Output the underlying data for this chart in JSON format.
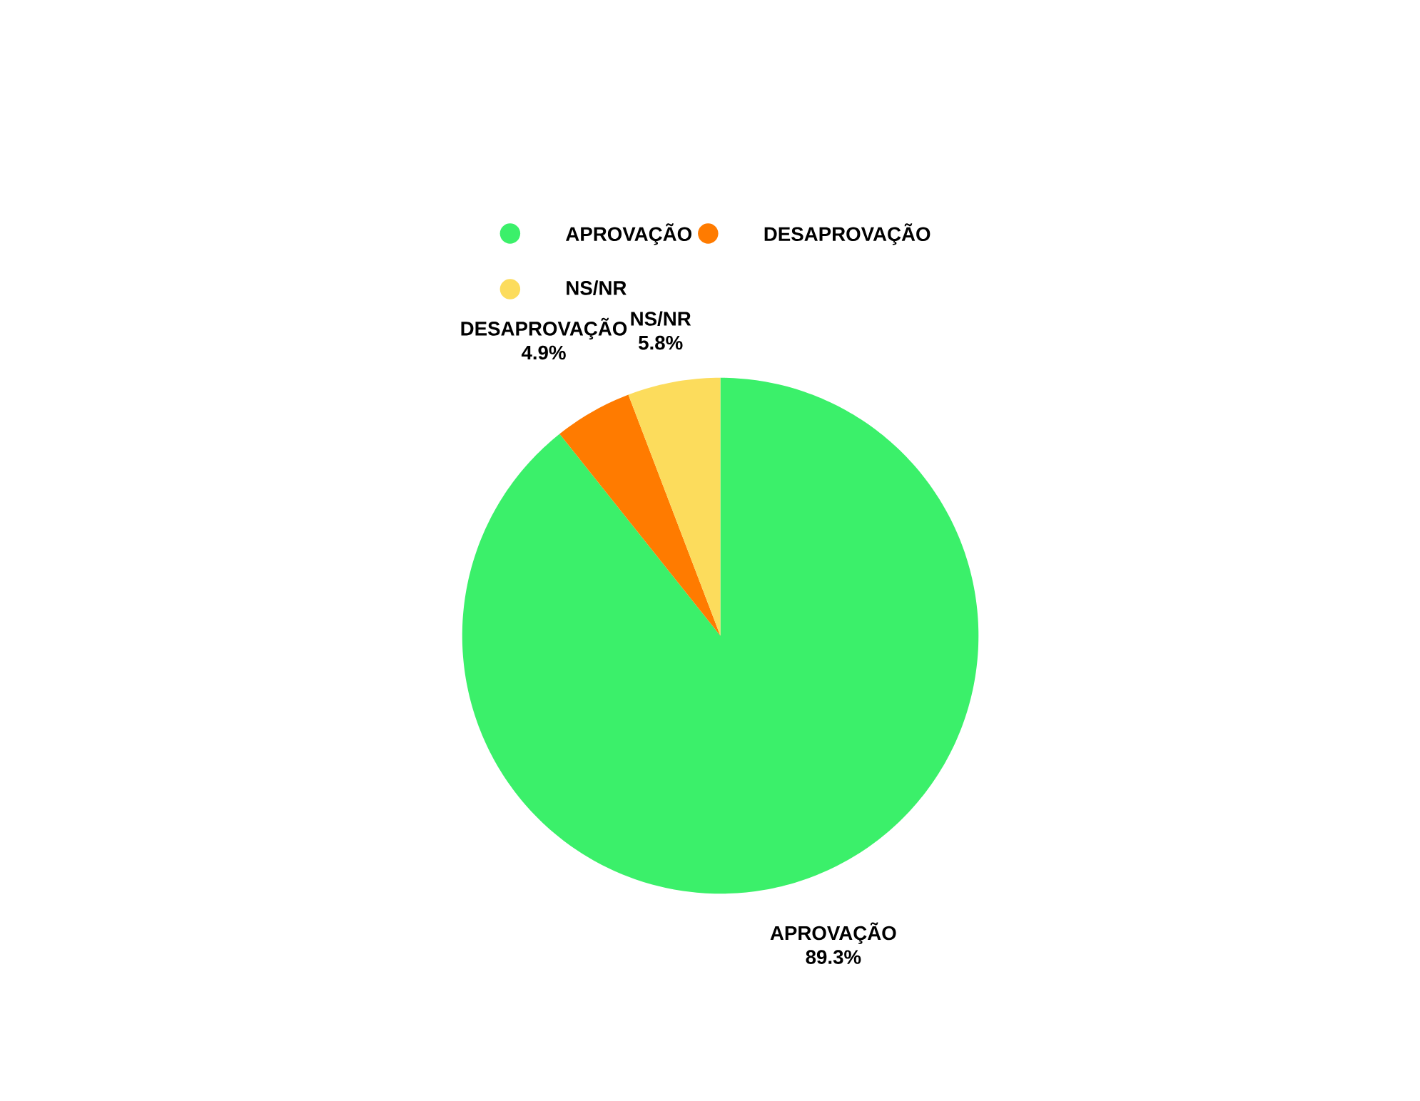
{
  "chart_data": {
    "type": "pie",
    "categories": [
      "APROVAÇÃO",
      "DESAPROVAÇÃO",
      "NS/NR"
    ],
    "values": [
      89.3,
      4.9,
      5.8
    ],
    "value_labels": [
      "89.3%",
      "4.9%",
      "5.8%"
    ],
    "colors": [
      "#3bf06a",
      "#ff7b00",
      "#fcdc5c"
    ],
    "legend": "top"
  }
}
